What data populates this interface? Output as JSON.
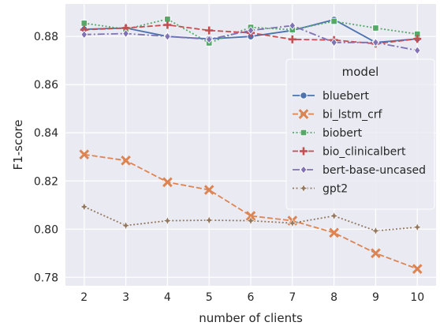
{
  "chart_data": {
    "type": "line",
    "xlabel": "number of clients",
    "ylabel": "F1-score",
    "x": [
      2,
      3,
      4,
      5,
      6,
      7,
      8,
      9,
      10
    ],
    "xlim": [
      1.55,
      10.45
    ],
    "ylim": [
      0.7765,
      0.8935
    ],
    "yticks": [
      0.78,
      0.8,
      0.82,
      0.84,
      0.86,
      0.88
    ],
    "ytick_labels": [
      "0.78",
      "0.80",
      "0.82",
      "0.84",
      "0.86",
      "0.88"
    ],
    "xtick_labels": [
      "2",
      "3",
      "4",
      "5",
      "6",
      "7",
      "8",
      "9",
      "10"
    ],
    "grid": true,
    "background": "#eaeaf2",
    "legend": {
      "title": "model",
      "placement": "center-right"
    },
    "series": [
      {
        "name": "bluebert",
        "color": "#4c72b0",
        "marker": "circle",
        "dash": "solid",
        "values": [
          0.883,
          0.8835,
          0.88,
          0.879,
          0.88,
          0.8825,
          0.887,
          0.8775,
          0.879
        ]
      },
      {
        "name": "bi_lstm_crf",
        "color": "#dd8452",
        "marker": "x",
        "dash": "dashed",
        "values": [
          0.831,
          0.8285,
          0.8195,
          0.8163,
          0.8055,
          0.8035,
          0.7985,
          0.79,
          0.7835
        ]
      },
      {
        "name": "biobert",
        "color": "#55a868",
        "marker": "square",
        "dash": "dotted",
        "values": [
          0.8855,
          0.883,
          0.8872,
          0.8773,
          0.8838,
          0.8828,
          0.8863,
          0.8835,
          0.881
        ]
      },
      {
        "name": "bio_clinicalbert",
        "color": "#c44e52",
        "marker": "plus",
        "dash": "dashed",
        "values": [
          0.8828,
          0.8835,
          0.8848,
          0.8825,
          0.8815,
          0.8788,
          0.8785,
          0.877,
          0.879
        ]
      },
      {
        "name": "bert-base-uncased",
        "color": "#8172b3",
        "marker": "diamond",
        "dash": "dashdot",
        "values": [
          0.8808,
          0.8812,
          0.88,
          0.8788,
          0.8825,
          0.8845,
          0.8775,
          0.8775,
          0.8742
        ]
      },
      {
        "name": "gpt2",
        "color": "#937860",
        "marker": "star",
        "dash": "dotted",
        "values": [
          0.8093,
          0.8015,
          0.8035,
          0.8037,
          0.8035,
          0.8025,
          0.8055,
          0.7993,
          0.8008
        ]
      }
    ]
  }
}
